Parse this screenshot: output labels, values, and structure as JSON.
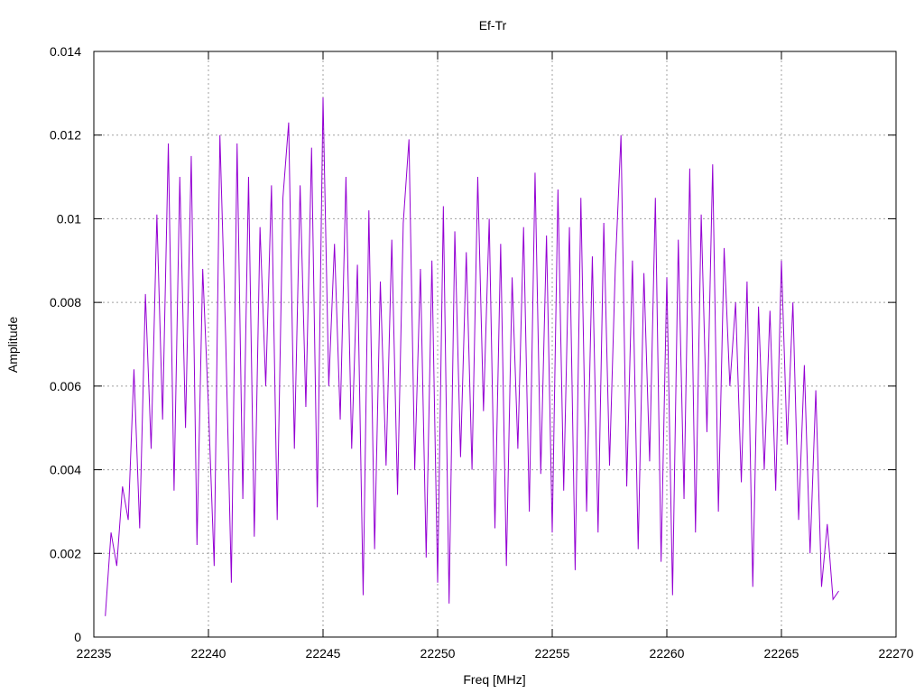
{
  "chart_data": {
    "type": "line",
    "title": "Ef-Tr",
    "x_label": "Freq [MHz]",
    "y_label": "Amplitude",
    "color": "#9400d3",
    "grid": true,
    "xlim": [
      22235,
      22270
    ],
    "xticks": [
      22235,
      22240,
      22245,
      22250,
      22255,
      22260,
      22265,
      22270
    ],
    "ylim": [
      0,
      0.014
    ],
    "yticks": [
      0,
      0.002,
      0.004,
      0.006,
      0.008,
      0.01,
      0.012,
      0.014
    ],
    "x": [
      22235.5,
      22235.75,
      22236,
      22236.25,
      22236.5,
      22236.75,
      22237,
      22237.25,
      22237.5,
      22237.75,
      22238,
      22238.25,
      22238.5,
      22238.75,
      22239,
      22239.25,
      22239.5,
      22239.75,
      22240,
      22240.25,
      22240.5,
      22240.75,
      22241,
      22241.25,
      22241.5,
      22241.75,
      22242,
      22242.25,
      22242.5,
      22242.75,
      22243,
      22243.25,
      22243.5,
      22243.75,
      22244,
      22244.25,
      22244.5,
      22244.75,
      22245,
      22245.25,
      22245.5,
      22245.75,
      22246,
      22246.25,
      22246.5,
      22246.75,
      22247,
      22247.25,
      22247.5,
      22247.75,
      22248,
      22248.25,
      22248.5,
      22248.75,
      22249,
      22249.25,
      22249.5,
      22249.75,
      22250,
      22250.25,
      22250.5,
      22250.75,
      22251,
      22251.25,
      22251.5,
      22251.75,
      22252,
      22252.25,
      22252.5,
      22252.75,
      22253,
      22253.25,
      22253.5,
      22253.75,
      22254,
      22254.25,
      22254.5,
      22254.75,
      22255,
      22255.25,
      22255.5,
      22255.75,
      22256,
      22256.25,
      22256.5,
      22256.75,
      22257,
      22257.25,
      22257.5,
      22257.75,
      22258,
      22258.25,
      22258.5,
      22258.75,
      22259,
      22259.25,
      22259.5,
      22259.75,
      22260,
      22260.25,
      22260.5,
      22260.75,
      22261,
      22261.25,
      22261.5,
      22261.75,
      22262,
      22262.25,
      22262.5,
      22262.75,
      22263,
      22263.25,
      22263.5,
      22263.75,
      22264,
      22264.25,
      22264.5,
      22264.75,
      22265,
      22265.25,
      22265.5,
      22265.75,
      22266,
      22266.25,
      22266.5,
      22266.75,
      22267,
      22267.25,
      22267.5
    ],
    "values": [
      0.0005,
      0.0025,
      0.0017,
      0.0036,
      0.0028,
      0.0064,
      0.0026,
      0.0082,
      0.0045,
      0.0101,
      0.0052,
      0.0118,
      0.0035,
      0.011,
      0.005,
      0.0115,
      0.0022,
      0.0088,
      0.0055,
      0.0017,
      0.012,
      0.0072,
      0.0013,
      0.0118,
      0.0033,
      0.011,
      0.0024,
      0.0098,
      0.006,
      0.0108,
      0.0028,
      0.0105,
      0.0123,
      0.0045,
      0.0108,
      0.0055,
      0.0117,
      0.0031,
      0.0129,
      0.006,
      0.0094,
      0.0052,
      0.011,
      0.0045,
      0.0089,
      0.001,
      0.0102,
      0.0021,
      0.0085,
      0.0041,
      0.0095,
      0.0034,
      0.0099,
      0.0119,
      0.004,
      0.0088,
      0.0019,
      0.009,
      0.0013,
      0.0103,
      0.0008,
      0.0097,
      0.0043,
      0.0092,
      0.004,
      0.011,
      0.0054,
      0.01,
      0.0026,
      0.0094,
      0.0017,
      0.0086,
      0.0045,
      0.0098,
      0.003,
      0.0111,
      0.0039,
      0.0096,
      0.0025,
      0.0107,
      0.0035,
      0.0098,
      0.0016,
      0.0105,
      0.003,
      0.0091,
      0.0025,
      0.0099,
      0.0041,
      0.0088,
      0.012,
      0.0036,
      0.009,
      0.0021,
      0.0087,
      0.0042,
      0.0105,
      0.0018,
      0.0086,
      0.001,
      0.0095,
      0.0033,
      0.0112,
      0.0025,
      0.0101,
      0.0049,
      0.0113,
      0.003,
      0.0093,
      0.006,
      0.008,
      0.0037,
      0.0085,
      0.0012,
      0.0079,
      0.004,
      0.0078,
      0.0035,
      0.009,
      0.0046,
      0.008,
      0.0028,
      0.0065,
      0.002,
      0.0059,
      0.0012,
      0.0027,
      0.0009,
      0.0011
    ]
  }
}
